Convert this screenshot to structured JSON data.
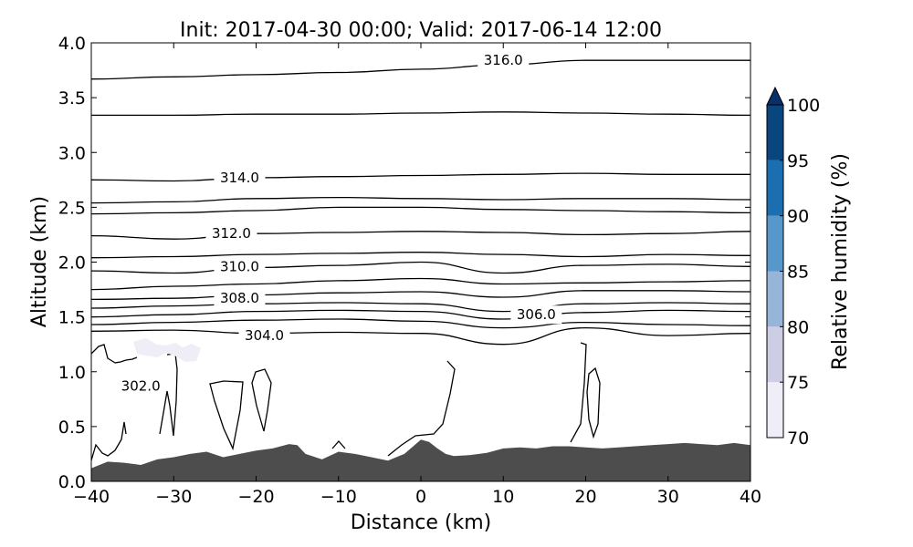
{
  "chart_data": {
    "type": "contour",
    "title": "Init: 2017-04-30 00:00; Valid: 2017-06-14 12:00",
    "xlabel": "Distance (km)",
    "ylabel": "Altitude (km)",
    "xlim": [
      -40,
      40
    ],
    "ylim": [
      0,
      4
    ],
    "xticks": [
      "−40",
      "−30",
      "−20",
      "−10",
      "0",
      "10",
      "20",
      "30",
      "40"
    ],
    "yticks": [
      "0.0",
      "0.5",
      "1.0",
      "1.5",
      "2.0",
      "2.5",
      "3.0",
      "3.5",
      "4.0"
    ],
    "grid": false,
    "terrain": {
      "color": "#4d4d4d",
      "x": [
        -40,
        -38,
        -36,
        -34,
        -32,
        -30,
        -28,
        -26,
        -24,
        -22,
        -20,
        -18,
        -16,
        -15,
        -14,
        -12,
        -10,
        -8,
        -6,
        -4,
        -2,
        0,
        1,
        2,
        3,
        4,
        6,
        8,
        10,
        12,
        14,
        16,
        18,
        20,
        22,
        24,
        26,
        28,
        30,
        32,
        34,
        36,
        38,
        40
      ],
      "y": [
        0.12,
        0.18,
        0.17,
        0.15,
        0.2,
        0.22,
        0.25,
        0.27,
        0.22,
        0.25,
        0.28,
        0.3,
        0.34,
        0.33,
        0.25,
        0.2,
        0.27,
        0.25,
        0.22,
        0.19,
        0.25,
        0.38,
        0.36,
        0.3,
        0.25,
        0.23,
        0.24,
        0.26,
        0.3,
        0.31,
        0.3,
        0.32,
        0.32,
        0.31,
        0.3,
        0.31,
        0.32,
        0.33,
        0.34,
        0.35,
        0.34,
        0.33,
        0.35,
        0.33
      ]
    },
    "contour_levels": [
      {
        "level": 316.0,
        "label": "316.0",
        "label_at": [
          10,
          3.84
        ],
        "x": [
          -40,
          -30,
          -20,
          -10,
          0,
          10,
          20,
          30,
          40
        ],
        "y": [
          3.67,
          3.69,
          3.71,
          3.73,
          3.76,
          3.8,
          3.84,
          3.84,
          3.84
        ]
      },
      {
        "level": 315.0,
        "label": "",
        "x": [
          -40,
          -30,
          -20,
          -10,
          0,
          10,
          20,
          30,
          40
        ],
        "y": [
          3.34,
          3.34,
          3.35,
          3.35,
          3.36,
          3.37,
          3.36,
          3.35,
          3.34
        ]
      },
      {
        "level": 314.0,
        "label": "314.0",
        "label_at": [
          -22,
          2.77
        ],
        "x": [
          -40,
          -30,
          -20,
          -10,
          0,
          10,
          20,
          30,
          40
        ],
        "y": [
          2.75,
          2.74,
          2.77,
          2.78,
          2.79,
          2.8,
          2.81,
          2.8,
          2.8
        ]
      },
      {
        "level": 313.5,
        "label": "",
        "x": [
          -40,
          -30,
          -20,
          -10,
          0,
          10,
          20,
          30,
          40
        ],
        "y": [
          2.54,
          2.55,
          2.58,
          2.59,
          2.58,
          2.57,
          2.58,
          2.58,
          2.57
        ]
      },
      {
        "level": 313.0,
        "label": "",
        "x": [
          -40,
          -30,
          -20,
          -10,
          0,
          10,
          20,
          30,
          40
        ],
        "y": [
          2.44,
          2.45,
          2.47,
          2.5,
          2.5,
          2.48,
          2.47,
          2.46,
          2.45
        ]
      },
      {
        "level": 312.0,
        "label": "312.0",
        "label_at": [
          -23,
          2.26
        ],
        "x": [
          -40,
          -30,
          -20,
          -10,
          0,
          10,
          20,
          30,
          40
        ],
        "y": [
          2.24,
          2.21,
          2.26,
          2.27,
          2.28,
          2.27,
          2.25,
          2.26,
          2.28
        ]
      },
      {
        "level": 311.0,
        "label": "",
        "x": [
          -40,
          -30,
          -20,
          -10,
          0,
          10,
          20,
          30,
          40
        ],
        "y": [
          2.04,
          2.05,
          2.07,
          2.08,
          2.09,
          2.07,
          2.05,
          2.07,
          2.06
        ]
      },
      {
        "level": 310.0,
        "label": "310.0",
        "label_at": [
          -22,
          1.96
        ],
        "x": [
          -40,
          -30,
          -20,
          -10,
          0,
          10,
          20,
          30,
          40
        ],
        "y": [
          1.92,
          1.9,
          1.95,
          1.97,
          2.0,
          1.9,
          1.97,
          1.98,
          1.96
        ]
      },
      {
        "level": 309.0,
        "label": "",
        "x": [
          -40,
          -30,
          -20,
          -10,
          0,
          10,
          20,
          30,
          40
        ],
        "y": [
          1.75,
          1.78,
          1.8,
          1.83,
          1.85,
          1.8,
          1.81,
          1.82,
          1.83
        ]
      },
      {
        "level": 308.0,
        "label": "308.0",
        "label_at": [
          -22,
          1.67
        ],
        "x": [
          -40,
          -30,
          -20,
          -10,
          0,
          10,
          20,
          30,
          40
        ],
        "y": [
          1.66,
          1.67,
          1.7,
          1.72,
          1.73,
          1.68,
          1.74,
          1.74,
          1.73
        ]
      },
      {
        "level": 307.0,
        "label": "",
        "x": [
          -40,
          -30,
          -20,
          -10,
          0,
          10,
          20,
          30,
          40
        ],
        "y": [
          1.58,
          1.6,
          1.62,
          1.63,
          1.62,
          1.55,
          1.62,
          1.63,
          1.62
        ]
      },
      {
        "level": 306.0,
        "label": "306.0",
        "label_at": [
          14,
          1.52
        ],
        "x": [
          -40,
          -30,
          -20,
          -10,
          0,
          10,
          20,
          30,
          40
        ],
        "y": [
          1.5,
          1.52,
          1.55,
          1.56,
          1.55,
          1.48,
          1.54,
          1.56,
          1.55
        ]
      },
      {
        "level": 305.0,
        "label": "",
        "x": [
          -40,
          -30,
          -20,
          -10,
          0,
          10,
          20,
          30,
          40
        ],
        "y": [
          1.43,
          1.45,
          1.47,
          1.48,
          1.46,
          1.4,
          1.45,
          1.43,
          1.42
        ]
      },
      {
        "level": 304.0,
        "label": "304.0",
        "label_at": [
          -19,
          1.33
        ],
        "x": [
          -40,
          -30,
          -20,
          -10,
          0,
          10,
          20,
          30,
          40
        ],
        "y": [
          1.37,
          1.38,
          1.35,
          1.36,
          1.35,
          1.25,
          1.4,
          1.33,
          1.35
        ]
      }
    ],
    "low_contour_label": {
      "label": "302.0",
      "at": [
        -34,
        0.87
      ]
    },
    "colorbar": {
      "label": "Relative humidity (%)",
      "ticks": [
        "70",
        "75",
        "80",
        "85",
        "90",
        "95",
        "100"
      ],
      "extend": "max",
      "colors": [
        "#efedf5",
        "#cdcde4",
        "#97b5d8",
        "#5897c9",
        "#1b6eb0",
        "#08467d"
      ],
      "extend_color": "#08306b"
    }
  }
}
